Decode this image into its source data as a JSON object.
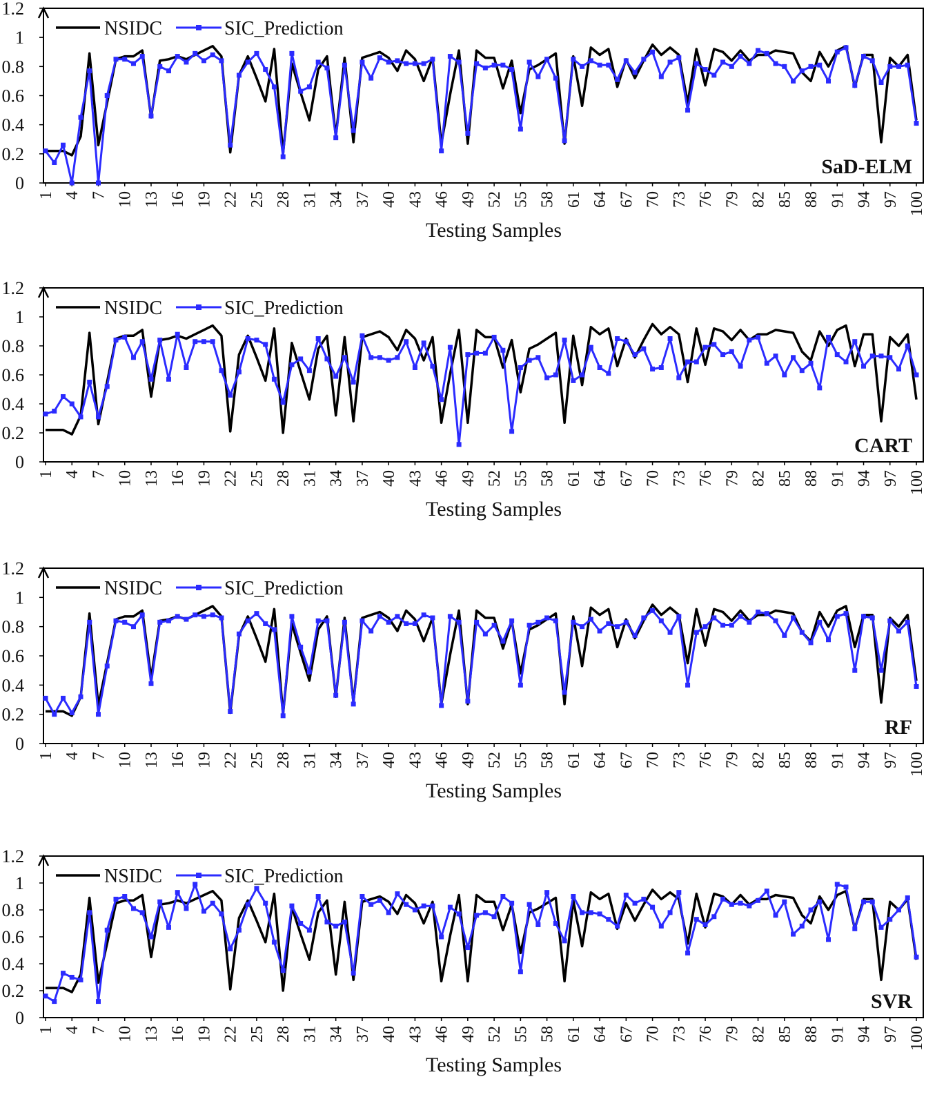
{
  "figure": {
    "xlabel": "Testing Samples",
    "legend": [
      "NSIDC",
      "SIC_Prediction"
    ],
    "colors": {
      "actual": "#000000",
      "prediction": "#2b2bff",
      "axis": "#000000"
    }
  },
  "chart_data": [
    {
      "type": "line",
      "title": "SaD-ELM",
      "xlabel": "Testing Samples",
      "ylabel": "",
      "ylim": [
        0,
        1.2
      ],
      "yticks": [
        "0",
        "0.2",
        "0.4",
        "0.6",
        "0.8",
        "1",
        "1.2"
      ],
      "xticks": [
        "1",
        "4",
        "7",
        "10",
        "13",
        "16",
        "19",
        "22",
        "25",
        "28",
        "31",
        "34",
        "37",
        "40",
        "43",
        "46",
        "49",
        "52",
        "55",
        "58",
        "61",
        "64",
        "67",
        "70",
        "73",
        "76",
        "79",
        "82",
        "85",
        "88",
        "91",
        "94",
        "97",
        "100"
      ],
      "legend_position": "top-left",
      "grid": false,
      "series": [
        {
          "name": "NSIDC",
          "values": [
            0.22,
            0.22,
            0.22,
            0.19,
            0.32,
            0.89,
            0.26,
            0.55,
            0.85,
            0.87,
            0.87,
            0.91,
            0.45,
            0.84,
            0.85,
            0.87,
            0.85,
            0.88,
            0.91,
            0.94,
            0.87,
            0.21,
            0.74,
            0.87,
            0.72,
            0.56,
            0.92,
            0.2,
            0.82,
            0.62,
            0.43,
            0.78,
            0.87,
            0.32,
            0.86,
            0.28,
            0.86,
            0.88,
            0.9,
            0.86,
            0.77,
            0.91,
            0.85,
            0.7,
            0.86,
            0.27,
            0.61,
            0.91,
            0.27,
            0.91,
            0.86,
            0.86,
            0.65,
            0.84,
            0.48,
            0.78,
            0.81,
            0.85,
            0.89,
            0.27,
            0.87,
            0.53,
            0.93,
            0.88,
            0.92,
            0.66,
            0.85,
            0.72,
            0.84,
            0.95,
            0.88,
            0.93,
            0.88,
            0.55,
            0.92,
            0.67,
            0.92,
            0.9,
            0.84,
            0.91,
            0.84,
            0.88,
            0.88,
            0.91,
            0.9,
            0.89,
            0.76,
            0.7,
            0.9,
            0.8,
            0.91,
            0.94,
            0.66,
            0.88,
            0.88,
            0.28,
            0.86,
            0.8,
            0.88,
            0.43
          ]
        },
        {
          "name": "SIC_Prediction",
          "values": [
            0.22,
            0.14,
            0.26,
            0.0,
            0.45,
            0.77,
            0.0,
            0.6,
            0.85,
            0.85,
            0.82,
            0.87,
            0.46,
            0.8,
            0.77,
            0.87,
            0.83,
            0.89,
            0.84,
            0.88,
            0.84,
            0.26,
            0.74,
            0.83,
            0.89,
            0.78,
            0.66,
            0.18,
            0.89,
            0.63,
            0.66,
            0.83,
            0.79,
            0.31,
            0.81,
            0.36,
            0.83,
            0.72,
            0.86,
            0.83,
            0.84,
            0.82,
            0.82,
            0.82,
            0.85,
            0.22,
            0.87,
            0.83,
            0.34,
            0.82,
            0.79,
            0.81,
            0.81,
            0.78,
            0.37,
            0.83,
            0.73,
            0.85,
            0.72,
            0.29,
            0.85,
            0.8,
            0.84,
            0.81,
            0.81,
            0.71,
            0.84,
            0.76,
            0.85,
            0.9,
            0.73,
            0.83,
            0.86,
            0.5,
            0.82,
            0.78,
            0.74,
            0.83,
            0.8,
            0.87,
            0.82,
            0.91,
            0.89,
            0.82,
            0.8,
            0.7,
            0.77,
            0.8,
            0.81,
            0.7,
            0.9,
            0.93,
            0.67,
            0.87,
            0.84,
            0.69,
            0.8,
            0.8,
            0.81,
            0.41
          ]
        }
      ]
    },
    {
      "type": "line",
      "title": "CART",
      "xlabel": "Testing Samples",
      "ylabel": "",
      "ylim": [
        0,
        1.2
      ],
      "yticks": [
        "0",
        "0.2",
        "0.4",
        "0.6",
        "0.8",
        "1",
        "1.2"
      ],
      "xticks": [
        "1",
        "4",
        "7",
        "10",
        "13",
        "16",
        "19",
        "22",
        "25",
        "28",
        "31",
        "34",
        "37",
        "40",
        "43",
        "46",
        "49",
        "52",
        "55",
        "58",
        "61",
        "64",
        "67",
        "70",
        "73",
        "76",
        "79",
        "82",
        "85",
        "88",
        "91",
        "94",
        "97",
        "100"
      ],
      "legend_position": "top-left",
      "grid": false,
      "series": [
        {
          "name": "NSIDC",
          "values": [
            0.22,
            0.22,
            0.22,
            0.19,
            0.32,
            0.89,
            0.26,
            0.55,
            0.85,
            0.87,
            0.87,
            0.91,
            0.45,
            0.84,
            0.85,
            0.87,
            0.85,
            0.88,
            0.91,
            0.94,
            0.87,
            0.21,
            0.74,
            0.87,
            0.72,
            0.56,
            0.92,
            0.2,
            0.82,
            0.62,
            0.43,
            0.78,
            0.87,
            0.32,
            0.86,
            0.28,
            0.86,
            0.88,
            0.9,
            0.86,
            0.77,
            0.91,
            0.85,
            0.7,
            0.86,
            0.27,
            0.61,
            0.91,
            0.27,
            0.91,
            0.86,
            0.86,
            0.65,
            0.84,
            0.48,
            0.78,
            0.81,
            0.85,
            0.89,
            0.27,
            0.87,
            0.53,
            0.93,
            0.88,
            0.92,
            0.66,
            0.85,
            0.72,
            0.84,
            0.95,
            0.88,
            0.93,
            0.88,
            0.55,
            0.92,
            0.67,
            0.92,
            0.9,
            0.84,
            0.91,
            0.84,
            0.88,
            0.88,
            0.91,
            0.9,
            0.89,
            0.76,
            0.7,
            0.9,
            0.8,
            0.91,
            0.94,
            0.66,
            0.88,
            0.88,
            0.28,
            0.86,
            0.8,
            0.88,
            0.43
          ]
        },
        {
          "name": "SIC_Prediction",
          "values": [
            0.33,
            0.35,
            0.45,
            0.4,
            0.31,
            0.55,
            0.31,
            0.52,
            0.84,
            0.86,
            0.72,
            0.83,
            0.57,
            0.84,
            0.57,
            0.88,
            0.65,
            0.83,
            0.83,
            0.83,
            0.63,
            0.46,
            0.62,
            0.85,
            0.84,
            0.81,
            0.57,
            0.41,
            0.67,
            0.71,
            0.63,
            0.85,
            0.71,
            0.59,
            0.72,
            0.55,
            0.87,
            0.72,
            0.72,
            0.7,
            0.72,
            0.83,
            0.65,
            0.82,
            0.66,
            0.43,
            0.79,
            0.12,
            0.74,
            0.75,
            0.75,
            0.86,
            0.77,
            0.21,
            0.65,
            0.7,
            0.72,
            0.58,
            0.6,
            0.84,
            0.56,
            0.6,
            0.79,
            0.65,
            0.61,
            0.85,
            0.83,
            0.74,
            0.78,
            0.64,
            0.65,
            0.85,
            0.58,
            0.69,
            0.69,
            0.79,
            0.81,
            0.74,
            0.76,
            0.66,
            0.84,
            0.86,
            0.68,
            0.73,
            0.6,
            0.72,
            0.63,
            0.68,
            0.51,
            0.86,
            0.74,
            0.69,
            0.83,
            0.66,
            0.73,
            0.73,
            0.72,
            0.64,
            0.8,
            0.6
          ]
        }
      ]
    },
    {
      "type": "line",
      "title": "RF",
      "xlabel": "Testing Samples",
      "ylabel": "",
      "ylim": [
        0,
        1.2
      ],
      "yticks": [
        "0",
        "0.2",
        "0.4",
        "0.6",
        "0.8",
        "1",
        "1.2"
      ],
      "xticks": [
        "1",
        "4",
        "7",
        "10",
        "13",
        "16",
        "19",
        "22",
        "25",
        "28",
        "31",
        "34",
        "37",
        "40",
        "43",
        "46",
        "49",
        "52",
        "55",
        "58",
        "61",
        "64",
        "67",
        "70",
        "73",
        "76",
        "79",
        "82",
        "85",
        "88",
        "91",
        "94",
        "97",
        "100"
      ],
      "legend_position": "top-left",
      "grid": false,
      "series": [
        {
          "name": "NSIDC",
          "values": [
            0.22,
            0.22,
            0.22,
            0.19,
            0.32,
            0.89,
            0.26,
            0.55,
            0.85,
            0.87,
            0.87,
            0.91,
            0.45,
            0.84,
            0.85,
            0.87,
            0.85,
            0.88,
            0.91,
            0.94,
            0.87,
            0.21,
            0.74,
            0.87,
            0.72,
            0.56,
            0.92,
            0.2,
            0.82,
            0.62,
            0.43,
            0.78,
            0.87,
            0.32,
            0.86,
            0.28,
            0.86,
            0.88,
            0.9,
            0.86,
            0.77,
            0.91,
            0.85,
            0.7,
            0.86,
            0.27,
            0.61,
            0.91,
            0.27,
            0.91,
            0.86,
            0.86,
            0.65,
            0.84,
            0.48,
            0.78,
            0.81,
            0.85,
            0.89,
            0.27,
            0.87,
            0.53,
            0.93,
            0.88,
            0.92,
            0.66,
            0.85,
            0.72,
            0.84,
            0.95,
            0.88,
            0.93,
            0.88,
            0.55,
            0.92,
            0.67,
            0.92,
            0.9,
            0.84,
            0.91,
            0.84,
            0.88,
            0.88,
            0.91,
            0.9,
            0.89,
            0.76,
            0.7,
            0.9,
            0.8,
            0.91,
            0.94,
            0.66,
            0.88,
            0.88,
            0.28,
            0.86,
            0.8,
            0.88,
            0.43
          ]
        },
        {
          "name": "SIC_Prediction",
          "values": [
            0.31,
            0.2,
            0.31,
            0.21,
            0.32,
            0.83,
            0.2,
            0.53,
            0.84,
            0.83,
            0.8,
            0.88,
            0.41,
            0.83,
            0.84,
            0.87,
            0.85,
            0.88,
            0.87,
            0.88,
            0.86,
            0.22,
            0.75,
            0.84,
            0.89,
            0.82,
            0.78,
            0.19,
            0.87,
            0.66,
            0.49,
            0.84,
            0.84,
            0.33,
            0.83,
            0.27,
            0.84,
            0.77,
            0.87,
            0.83,
            0.87,
            0.82,
            0.82,
            0.88,
            0.86,
            0.26,
            0.87,
            0.83,
            0.29,
            0.83,
            0.75,
            0.81,
            0.7,
            0.84,
            0.4,
            0.81,
            0.83,
            0.86,
            0.84,
            0.35,
            0.83,
            0.8,
            0.85,
            0.77,
            0.82,
            0.8,
            0.83,
            0.74,
            0.86,
            0.91,
            0.84,
            0.76,
            0.87,
            0.4,
            0.76,
            0.8,
            0.86,
            0.81,
            0.81,
            0.87,
            0.83,
            0.9,
            0.89,
            0.84,
            0.74,
            0.86,
            0.76,
            0.69,
            0.83,
            0.71,
            0.87,
            0.89,
            0.5,
            0.87,
            0.86,
            0.5,
            0.84,
            0.77,
            0.83,
            0.39
          ]
        }
      ]
    },
    {
      "type": "line",
      "title": "SVR",
      "xlabel": "Testing Samples",
      "ylabel": "",
      "ylim": [
        0,
        1.2
      ],
      "yticks": [
        "0",
        "0.2",
        "0.4",
        "0.6",
        "0.8",
        "1",
        "1.2"
      ],
      "xticks": [
        "1",
        "4",
        "7",
        "10",
        "13",
        "16",
        "19",
        "22",
        "25",
        "28",
        "31",
        "34",
        "37",
        "40",
        "43",
        "46",
        "49",
        "52",
        "55",
        "58",
        "61",
        "64",
        "67",
        "70",
        "73",
        "76",
        "79",
        "82",
        "85",
        "88",
        "91",
        "94",
        "97",
        "100"
      ],
      "legend_position": "top-left",
      "grid": false,
      "series": [
        {
          "name": "NSIDC",
          "values": [
            0.22,
            0.22,
            0.22,
            0.19,
            0.32,
            0.89,
            0.26,
            0.55,
            0.85,
            0.87,
            0.87,
            0.91,
            0.45,
            0.84,
            0.85,
            0.87,
            0.85,
            0.88,
            0.91,
            0.94,
            0.87,
            0.21,
            0.74,
            0.87,
            0.72,
            0.56,
            0.92,
            0.2,
            0.82,
            0.62,
            0.43,
            0.78,
            0.87,
            0.32,
            0.86,
            0.28,
            0.86,
            0.88,
            0.9,
            0.86,
            0.77,
            0.91,
            0.85,
            0.7,
            0.86,
            0.27,
            0.61,
            0.91,
            0.27,
            0.91,
            0.86,
            0.86,
            0.65,
            0.84,
            0.48,
            0.78,
            0.81,
            0.85,
            0.89,
            0.27,
            0.87,
            0.53,
            0.93,
            0.88,
            0.92,
            0.66,
            0.85,
            0.72,
            0.84,
            0.95,
            0.88,
            0.93,
            0.88,
            0.55,
            0.92,
            0.67,
            0.92,
            0.9,
            0.84,
            0.91,
            0.84,
            0.88,
            0.88,
            0.91,
            0.9,
            0.89,
            0.76,
            0.7,
            0.9,
            0.8,
            0.91,
            0.94,
            0.66,
            0.88,
            0.88,
            0.28,
            0.86,
            0.8,
            0.88,
            0.43
          ]
        },
        {
          "name": "SIC_Prediction",
          "values": [
            0.16,
            0.12,
            0.33,
            0.3,
            0.28,
            0.78,
            0.12,
            0.65,
            0.88,
            0.9,
            0.81,
            0.78,
            0.6,
            0.86,
            0.67,
            0.93,
            0.81,
            0.99,
            0.79,
            0.85,
            0.77,
            0.51,
            0.65,
            0.84,
            0.96,
            0.85,
            0.56,
            0.35,
            0.83,
            0.7,
            0.65,
            0.9,
            0.71,
            0.68,
            0.71,
            0.33,
            0.9,
            0.84,
            0.87,
            0.78,
            0.92,
            0.84,
            0.8,
            0.83,
            0.83,
            0.6,
            0.82,
            0.77,
            0.52,
            0.76,
            0.78,
            0.75,
            0.9,
            0.85,
            0.34,
            0.84,
            0.69,
            0.93,
            0.7,
            0.57,
            0.9,
            0.78,
            0.78,
            0.77,
            0.73,
            0.68,
            0.91,
            0.85,
            0.88,
            0.82,
            0.68,
            0.78,
            0.93,
            0.48,
            0.73,
            0.69,
            0.75,
            0.88,
            0.84,
            0.85,
            0.83,
            0.87,
            0.94,
            0.76,
            0.86,
            0.62,
            0.68,
            0.8,
            0.86,
            0.58,
            0.99,
            0.97,
            0.66,
            0.86,
            0.86,
            0.67,
            0.73,
            0.8,
            0.89,
            0.45
          ]
        }
      ]
    }
  ]
}
